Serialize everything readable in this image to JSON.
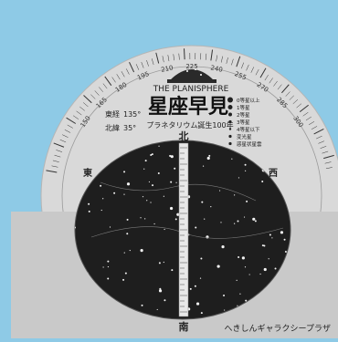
{
  "colors": {
    "sky": "#8ecae6",
    "dial": "#d9d9d9",
    "lower_panel": "#c9c9c9",
    "star_field": "#1e1e1e",
    "ink": "#222222"
  },
  "dial_ticks": [
    "150",
    "165",
    "180",
    "195",
    "210",
    "225",
    "240",
    "255",
    "270",
    "285",
    "300"
  ],
  "header": {
    "subtitle_en": "THE PLANISPHERE",
    "title_ja": "星座早見",
    "caption": "プラネタリウム誕生100年"
  },
  "coords": {
    "longitude_label": "東経",
    "longitude_value": "135°",
    "latitude_label": "北緯",
    "latitude_value": "35°"
  },
  "legend": [
    "0等星以上",
    "1等星",
    "2等星",
    "3等星",
    "4等星以下",
    "変光星",
    "惑星状星雲"
  ],
  "directions": {
    "north": "北",
    "south": "南",
    "east": "東",
    "west": "西"
  },
  "footer": {
    "maker": "へきしんギャラクシープラザ"
  },
  "icons": {
    "header_emblem": "planetarium-dome-icon"
  }
}
